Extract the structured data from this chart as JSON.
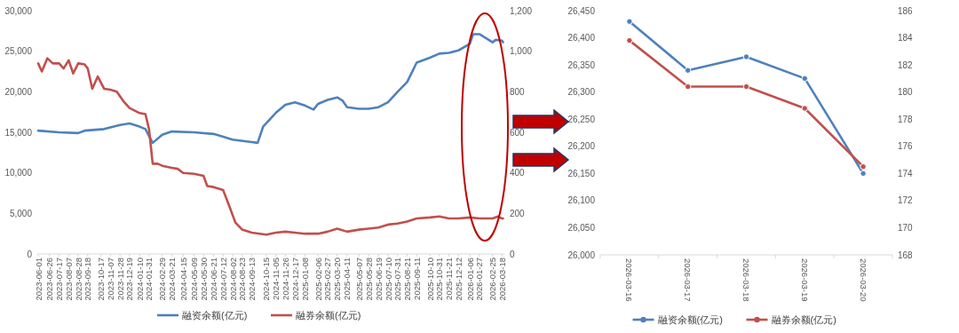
{
  "chart_data": [
    {
      "type": "line",
      "xlim": [
        "2023-05-30",
        "2026-03-23"
      ],
      "xticks": [
        "2023-06-01",
        "2023-06-26",
        "2023-07-17",
        "2023-08-07",
        "2023-08-28",
        "2023-09-18",
        "2023-10-17",
        "2023-11-07",
        "2023-11-28",
        "2023-12-19",
        "2024-01-10",
        "2024-01-31",
        "2024-02-29",
        "2024-03-21",
        "2024-04-15",
        "2024-05-09",
        "2024-05-30",
        "2024-06-21",
        "2024-07-12",
        "2024-08-02",
        "2024-08-23",
        "2024-09-13",
        "2024-10-15",
        "2024-11-05",
        "2024-11-26",
        "2024-12-17",
        "2025-01-08",
        "2025-02-06",
        "2025-02-27",
        "2025-03-20",
        "2025-04-11",
        "2025-05-07",
        "2025-05-28",
        "2025-06-19",
        "2025-07-10",
        "2025-07-31",
        "2025-08-21",
        "2025-09-11",
        "2025-10-10",
        "2025-10-31",
        "2025-11-21",
        "2025-12-12",
        "2026-01-06",
        "2026-01-27",
        "2026-02-25",
        "2026-03-18"
      ],
      "ylim": [
        0,
        30000
      ],
      "yticks": [
        0,
        {
          "value": 5000,
          "label": "5,000"
        },
        {
          "value": 10000,
          "label": "10,000"
        },
        {
          "value": 15000,
          "label": "15,000"
        },
        {
          "value": 20000,
          "label": "20,000"
        },
        {
          "value": 25000,
          "label": "25,000"
        },
        {
          "value": 30000,
          "label": "30,000"
        }
      ],
      "y2lim": [
        0,
        1200
      ],
      "y2ticks": [
        0,
        200,
        400,
        600,
        800,
        {
          "value": 1000,
          "label": "1,000"
        },
        {
          "value": 1200,
          "label": "1,200"
        }
      ],
      "legend": "bottom",
      "series": [
        {
          "name": "融资余额(亿元)",
          "color": "#4f81bd",
          "x": [
            "2023-06-01",
            "2023-07-17",
            "2023-08-28",
            "2023-09-11",
            "2023-10-24",
            "2023-11-28",
            "2023-12-19",
            "2024-01-10",
            "2024-01-23",
            "2024-02-04",
            "2024-02-08",
            "2024-02-29",
            "2024-03-21",
            "2024-05-09",
            "2024-06-21",
            "2024-08-02",
            "2024-09-13",
            "2024-09-26",
            "2024-10-08",
            "2024-11-05",
            "2024-11-26",
            "2024-12-17",
            "2025-01-08",
            "2025-01-27",
            "2025-02-06",
            "2025-02-27",
            "2025-03-20",
            "2025-04-01",
            "2025-04-11",
            "2025-05-07",
            "2025-05-28",
            "2025-06-19",
            "2025-07-10",
            "2025-07-31",
            "2025-08-21",
            "2025-09-11",
            "2025-10-10",
            "2025-10-31",
            "2025-11-21",
            "2025-12-12",
            "2026-01-06",
            "2026-01-13",
            "2026-01-27",
            "2026-02-11",
            "2026-02-25",
            "2026-03-04",
            "2026-03-18",
            "2026-03-20"
          ],
          "values": [
            15200,
            15000,
            14900,
            15200,
            15400,
            15900,
            16100,
            15700,
            15400,
            14100,
            13700,
            14700,
            15100,
            15000,
            14800,
            14100,
            13800,
            13700,
            15700,
            17400,
            18400,
            18700,
            18300,
            17800,
            18500,
            19000,
            19300,
            18900,
            18100,
            17900,
            17900,
            18100,
            18700,
            20000,
            21200,
            23600,
            24200,
            24700,
            24800,
            25100,
            25900,
            27100,
            27100,
            26600,
            26100,
            26400,
            26300,
            26100
          ]
        },
        {
          "name": "融券余额(亿元)",
          "color": "#c0504d",
          "axis": "y2",
          "x": [
            "2023-06-01",
            "2023-06-09",
            "2023-06-21",
            "2023-07-03",
            "2023-07-17",
            "2023-07-27",
            "2023-08-07",
            "2023-08-17",
            "2023-08-28",
            "2023-09-11",
            "2023-09-18",
            "2023-09-28",
            "2023-10-10",
            "2023-10-24",
            "2023-11-07",
            "2023-11-21",
            "2023-12-05",
            "2023-12-19",
            "2024-01-10",
            "2024-01-23",
            "2024-01-31",
            "2024-02-08",
            "2024-02-19",
            "2024-02-29",
            "2024-03-21",
            "2024-04-03",
            "2024-04-15",
            "2024-05-09",
            "2024-05-30",
            "2024-06-07",
            "2024-06-21",
            "2024-07-12",
            "2024-07-25",
            "2024-08-08",
            "2024-08-23",
            "2024-09-13",
            "2024-10-15",
            "2024-11-05",
            "2024-11-26",
            "2024-12-17",
            "2025-01-08",
            "2025-02-06",
            "2025-02-27",
            "2025-03-20",
            "2025-04-11",
            "2025-05-07",
            "2025-05-28",
            "2025-06-19",
            "2025-07-10",
            "2025-07-31",
            "2025-08-21",
            "2025-09-11",
            "2025-10-10",
            "2025-10-31",
            "2025-11-21",
            "2025-12-12",
            "2026-01-06",
            "2026-01-27",
            "2026-02-25",
            "2026-03-09",
            "2026-03-18",
            "2026-03-20"
          ],
          "values": [
            940,
            900,
            965,
            940,
            940,
            915,
            955,
            890,
            940,
            935,
            915,
            815,
            875,
            815,
            810,
            800,
            755,
            720,
            695,
            690,
            615,
            445,
            445,
            435,
            425,
            420,
            400,
            395,
            385,
            335,
            330,
            315,
            240,
            155,
            120,
            105,
            95,
            105,
            110,
            105,
            100,
            100,
            110,
            125,
            110,
            120,
            125,
            130,
            145,
            150,
            160,
            175,
            180,
            185,
            175,
            175,
            180,
            175,
            175,
            185,
            175,
            175
          ]
        }
      ]
    },
    {
      "type": "line",
      "categories": [
        "2026-03-16",
        "2026-03-17",
        "2026-03-18",
        "2026-03-19",
        "2026-03-20"
      ],
      "ylim": [
        26000,
        26450
      ],
      "yticks": [
        {
          "value": 26000,
          "label": "26,000"
        },
        {
          "value": 26050,
          "label": "26,050"
        },
        {
          "value": 26100,
          "label": "26,100"
        },
        {
          "value": 26150,
          "label": "26,150"
        },
        {
          "value": 26200,
          "label": "26,200"
        },
        {
          "value": 26250,
          "label": "26,250"
        },
        {
          "value": 26300,
          "label": "26,300"
        },
        {
          "value": 26350,
          "label": "26,350"
        },
        {
          "value": 26400,
          "label": "26,400"
        },
        {
          "value": 26450,
          "label": "26,450"
        }
      ],
      "y2lim": [
        168,
        186
      ],
      "y2ticks": [
        168,
        170,
        172,
        174,
        176,
        178,
        180,
        182,
        184,
        186
      ],
      "legend": "bottom",
      "marker": "circle",
      "series": [
        {
          "name": "融资余额(亿元)",
          "color": "#4f81bd",
          "values": [
            26430,
            26340,
            26365,
            26325,
            26150
          ]
        },
        {
          "name": "融券余额(亿元)",
          "color": "#c0504d",
          "axis": "y2",
          "values": [
            183.8,
            180.4,
            180.4,
            178.8,
            174.5
          ]
        }
      ]
    }
  ]
}
